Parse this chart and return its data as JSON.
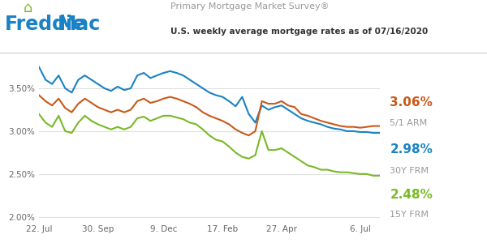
{
  "title_survey": "Primary Mortgage Market Survey®",
  "title_sub": "U.S. weekly average mortgage rates as of 07/16/2020",
  "freddie_blue": "#1a82c4",
  "freddie_green": "#78b928",
  "color_30y": "#1a82c4",
  "color_15y": "#78b928",
  "color_arm": "#c8591a",
  "label_30y_val": "2.98%",
  "label_30y_name": "30Y FRM",
  "label_15y_val": "2.48%",
  "label_15y_name": "15Y FRM",
  "label_arm_val": "3.06%",
  "label_arm_name": "5/1 ARM",
  "xtick_labels": [
    "22. Jul",
    "30. Sep",
    "9. Dec",
    "17. Feb",
    "27. Apr",
    "6. Jul"
  ],
  "ytick_labels": [
    "2.00%",
    "2.50%",
    "3.00%",
    "3.50%"
  ],
  "ytick_vals": [
    2.0,
    2.5,
    3.0,
    3.5
  ],
  "background": "#ffffff",
  "grid_color": "#e0e0e0",
  "x_pts": [
    0,
    1,
    2,
    3,
    4,
    5,
    6,
    7,
    8,
    9,
    10,
    11,
    12,
    13,
    14,
    15,
    16,
    17,
    18,
    19,
    20,
    21,
    22,
    23,
    24,
    25,
    26,
    27,
    28,
    29,
    30,
    31,
    32,
    33,
    34,
    35,
    36,
    37,
    38,
    39,
    40,
    41,
    42,
    43,
    44,
    45,
    46,
    47,
    48,
    49,
    50,
    51,
    52
  ],
  "y_30y": [
    3.75,
    3.6,
    3.55,
    3.65,
    3.5,
    3.45,
    3.6,
    3.65,
    3.6,
    3.55,
    3.5,
    3.47,
    3.52,
    3.48,
    3.5,
    3.65,
    3.68,
    3.62,
    3.65,
    3.68,
    3.7,
    3.68,
    3.65,
    3.6,
    3.55,
    3.5,
    3.45,
    3.42,
    3.4,
    3.35,
    3.29,
    3.4,
    3.2,
    3.1,
    3.3,
    3.25,
    3.28,
    3.3,
    3.25,
    3.2,
    3.15,
    3.12,
    3.1,
    3.08,
    3.05,
    3.03,
    3.02,
    3.0,
    3.0,
    2.99,
    2.99,
    2.98,
    2.98
  ],
  "y_15y": [
    3.2,
    3.1,
    3.05,
    3.18,
    3.0,
    2.98,
    3.1,
    3.18,
    3.12,
    3.08,
    3.05,
    3.02,
    3.05,
    3.02,
    3.05,
    3.15,
    3.17,
    3.12,
    3.15,
    3.18,
    3.18,
    3.16,
    3.14,
    3.1,
    3.08,
    3.02,
    2.95,
    2.9,
    2.88,
    2.82,
    2.75,
    2.7,
    2.68,
    2.72,
    3.0,
    2.78,
    2.78,
    2.8,
    2.75,
    2.7,
    2.65,
    2.6,
    2.58,
    2.55,
    2.55,
    2.53,
    2.52,
    2.52,
    2.51,
    2.5,
    2.5,
    2.48,
    2.48
  ],
  "y_arm": [
    3.42,
    3.35,
    3.3,
    3.38,
    3.27,
    3.22,
    3.32,
    3.38,
    3.33,
    3.28,
    3.25,
    3.22,
    3.25,
    3.22,
    3.25,
    3.35,
    3.38,
    3.33,
    3.35,
    3.38,
    3.4,
    3.38,
    3.35,
    3.32,
    3.28,
    3.22,
    3.18,
    3.15,
    3.12,
    3.08,
    3.02,
    2.98,
    2.95,
    3.0,
    3.35,
    3.32,
    3.32,
    3.35,
    3.3,
    3.28,
    3.2,
    3.18,
    3.15,
    3.12,
    3.1,
    3.08,
    3.06,
    3.05,
    3.05,
    3.04,
    3.05,
    3.06,
    3.06
  ],
  "xtick_positions": [
    0,
    9,
    19,
    28,
    37,
    49
  ],
  "ylim": [
    1.95,
    3.85
  ],
  "xlim": [
    0,
    52
  ],
  "divider_color": "#cccccc",
  "tick_label_color": "#666666"
}
